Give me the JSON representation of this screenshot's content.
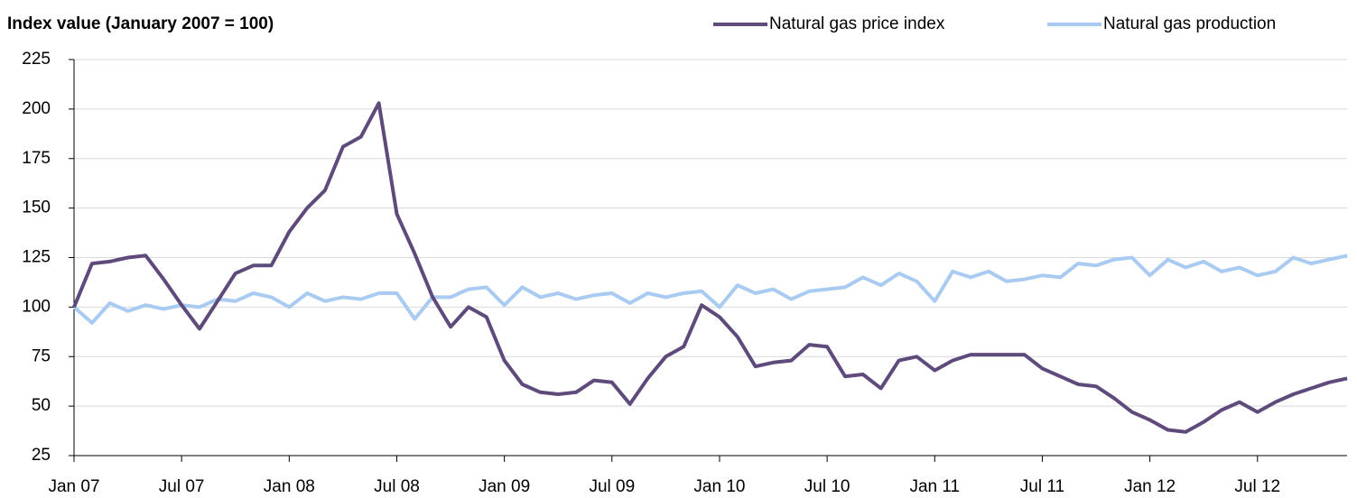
{
  "chart_data": {
    "type": "line",
    "y_axis_title": "Index  value (January 2007 = 100)",
    "categories": [
      "Jan 07",
      null,
      null,
      null,
      null,
      null,
      "Jul 07",
      null,
      null,
      null,
      null,
      null,
      "Jan 08",
      null,
      null,
      null,
      null,
      null,
      "Jul 08",
      null,
      null,
      null,
      null,
      null,
      "Jan 09",
      null,
      null,
      null,
      null,
      null,
      "Jul 09",
      null,
      null,
      null,
      null,
      null,
      "Jan 10",
      null,
      null,
      null,
      null,
      null,
      "Jul 10",
      null,
      null,
      null,
      null,
      null,
      "Jan 11",
      null,
      null,
      null,
      null,
      null,
      "Jul 11",
      null,
      null,
      null,
      null,
      null,
      "Jan 12",
      null,
      null,
      null,
      null,
      null,
      "Jul 12",
      null,
      null,
      null,
      null,
      null
    ],
    "series": [
      {
        "name": "Natural gas price index",
        "color": "#5e4b7b",
        "values": [
          100,
          122,
          123,
          125,
          126,
          114,
          101,
          89,
          103,
          117,
          121,
          121,
          138,
          150,
          159,
          181,
          186,
          203,
          147,
          127,
          105,
          90,
          100,
          95,
          73,
          61,
          57,
          56,
          57,
          63,
          62,
          51,
          64,
          75,
          80,
          101,
          95,
          85,
          70,
          72,
          73,
          81,
          80,
          65,
          66,
          59,
          73,
          75,
          68,
          73,
          76,
          76,
          76,
          76,
          69,
          65,
          61,
          60,
          54,
          47,
          43,
          38,
          37,
          42,
          48,
          52,
          47,
          52,
          56,
          59,
          62,
          64
        ]
      },
      {
        "name": "Natural gas production",
        "color": "#a9cbf2",
        "values": [
          100,
          92,
          102,
          98,
          101,
          99,
          101,
          100,
          104,
          103,
          107,
          105,
          100,
          107,
          103,
          105,
          104,
          107,
          107,
          94,
          105,
          105,
          109,
          110,
          101,
          110,
          105,
          107,
          104,
          106,
          107,
          102,
          107,
          105,
          107,
          108,
          100,
          111,
          107,
          109,
          104,
          108,
          109,
          110,
          115,
          111,
          117,
          113,
          103,
          118,
          115,
          118,
          113,
          114,
          116,
          115,
          122,
          121,
          124,
          125,
          116,
          124,
          120,
          123,
          118,
          120,
          116,
          118,
          125,
          122,
          124,
          126
        ]
      }
    ],
    "ylim": [
      25,
      225
    ],
    "yticks": [
      25,
      50,
      75,
      100,
      125,
      150,
      175,
      200,
      225
    ],
    "grid": true,
    "legend": "top-right"
  }
}
